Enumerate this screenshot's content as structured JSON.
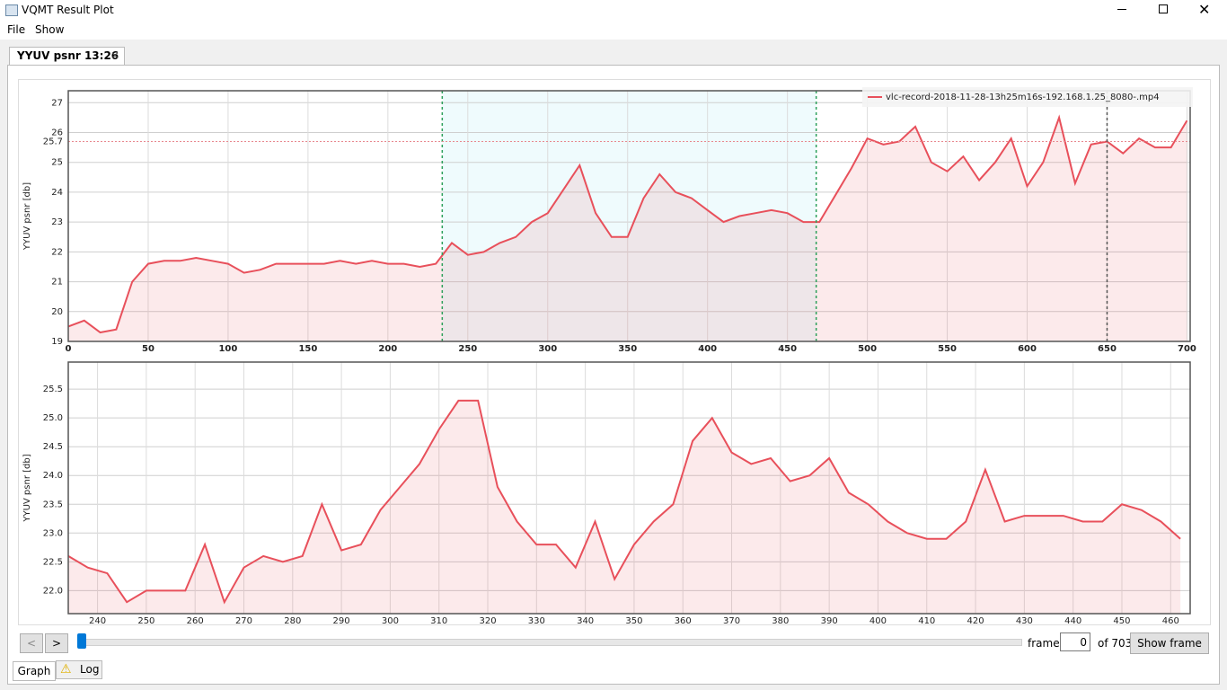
{
  "window": {
    "title": "VQMT Result Plot",
    "menu": [
      "File",
      "Show"
    ],
    "tab": "YYUV psnr 13:26"
  },
  "controls": {
    "prev": "<",
    "next": ">",
    "frame_label": "frame",
    "frame_value": 0,
    "of_label": "of 703",
    "show_frame": "Show frame"
  },
  "bottom_tabs": [
    "Graph",
    "Log"
  ],
  "chart_data": [
    {
      "type": "line",
      "ylabel": "YYUV psnr [db]",
      "x": [
        0,
        10,
        20,
        30,
        40,
        50,
        60,
        70,
        80,
        90,
        100,
        110,
        120,
        130,
        140,
        150,
        160,
        170,
        180,
        190,
        200,
        210,
        220,
        230,
        240,
        250,
        260,
        270,
        280,
        290,
        300,
        310,
        320,
        330,
        340,
        350,
        360,
        370,
        380,
        390,
        400,
        410,
        420,
        430,
        440,
        450,
        460,
        470,
        480,
        490,
        500,
        510,
        520,
        530,
        540,
        550,
        560,
        570,
        580,
        590,
        600,
        610,
        620,
        630,
        640,
        650,
        660,
        670,
        680,
        690,
        700
      ],
      "series": [
        {
          "name": "vlc-record-2018-11-28-13h25m16s-192.168.1.25_8080-.mp4",
          "color": "#e8505b",
          "values": [
            19.5,
            19.7,
            19.3,
            19.4,
            21.0,
            21.6,
            21.7,
            21.7,
            21.8,
            21.7,
            21.6,
            21.3,
            21.4,
            21.6,
            21.6,
            21.6,
            21.6,
            21.7,
            21.6,
            21.7,
            21.6,
            21.6,
            21.5,
            21.6,
            22.3,
            21.9,
            22.0,
            22.3,
            22.5,
            23.0,
            23.3,
            24.1,
            24.9,
            23.3,
            22.5,
            22.5,
            23.8,
            24.6,
            24.0,
            23.8,
            23.4,
            23.0,
            23.2,
            23.3,
            23.4,
            23.3,
            23.0,
            23.0,
            23.9,
            24.8,
            25.8,
            25.6,
            25.7,
            26.2,
            25.0,
            24.7,
            25.2,
            24.4,
            25.0,
            25.8,
            24.2,
            25.0,
            26.5,
            24.3,
            25.6,
            25.7,
            25.3,
            25.8,
            25.5,
            25.5,
            26.4
          ]
        }
      ],
      "xlim": [
        0,
        702
      ],
      "xticks": [
        0,
        50,
        100,
        150,
        200,
        250,
        300,
        350,
        400,
        450,
        500,
        550,
        600,
        650,
        700
      ],
      "ylim": [
        19,
        27.4
      ],
      "yticks": [
        19,
        20,
        21,
        22,
        23,
        24,
        25,
        26,
        27
      ],
      "grid": true,
      "legend": "top-right",
      "selection": [
        234,
        468
      ],
      "hline": 25.7,
      "vline": 650
    },
    {
      "type": "line",
      "ylabel": "YYUV psnr [db]",
      "x": [
        234,
        238,
        242,
        246,
        250,
        254,
        258,
        262,
        266,
        270,
        274,
        278,
        282,
        286,
        290,
        294,
        298,
        302,
        306,
        310,
        314,
        318,
        322,
        326,
        330,
        334,
        338,
        342,
        346,
        350,
        354,
        358,
        362,
        366,
        370,
        374,
        378,
        382,
        386,
        390,
        394,
        398,
        402,
        406,
        410,
        414,
        418,
        422,
        426,
        430,
        434,
        438,
        442,
        446,
        450,
        454,
        458,
        462
      ],
      "series": [
        {
          "color": "#e8505b",
          "values": [
            22.6,
            22.4,
            22.3,
            21.8,
            22.0,
            22.0,
            22.0,
            22.8,
            21.8,
            22.4,
            22.6,
            22.5,
            22.6,
            23.5,
            22.7,
            22.8,
            23.4,
            23.8,
            24.2,
            24.8,
            25.3,
            25.3,
            23.8,
            23.2,
            22.8,
            22.8,
            22.4,
            23.2,
            22.2,
            22.8,
            23.2,
            23.5,
            24.6,
            25.0,
            24.4,
            24.2,
            24.3,
            23.9,
            24.0,
            24.3,
            23.7,
            23.5,
            23.2,
            23.0,
            22.9,
            22.9,
            23.2,
            24.1,
            23.2,
            23.3,
            23.3,
            23.3,
            23.2,
            23.2,
            23.5,
            23.4,
            23.2,
            22.9
          ]
        }
      ],
      "xlim": [
        234,
        464
      ],
      "xticks": [
        240,
        250,
        260,
        270,
        280,
        290,
        300,
        310,
        320,
        330,
        340,
        350,
        360,
        370,
        380,
        390,
        400,
        410,
        420,
        430,
        440,
        450,
        460
      ],
      "ylim": [
        21.6,
        25.97
      ],
      "yticks": [
        {
          "value": 22,
          "label": "22.0"
        },
        {
          "value": 22.5,
          "label": "22.5"
        },
        {
          "value": 23,
          "label": "23.0"
        },
        {
          "value": 23.5,
          "label": "23.5"
        },
        {
          "value": 24,
          "label": "24.0"
        },
        {
          "value": 24.5,
          "label": "24.5"
        },
        {
          "value": 25,
          "label": "25.0"
        },
        {
          "value": 25.5,
          "label": "25.5"
        }
      ],
      "grid": true
    }
  ]
}
